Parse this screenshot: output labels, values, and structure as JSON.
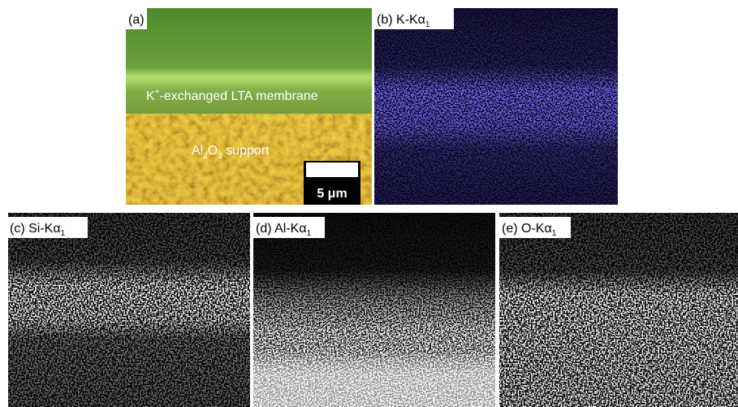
{
  "panel_a": {
    "label": "(a)",
    "membrane_label": {
      "base": "K",
      "sup": "+",
      "rest": "-exchanged LTA membrane"
    },
    "support_label": {
      "part1": "Al",
      "sub1": "2",
      "part2": "O",
      "sub2": "3",
      "rest": " support"
    },
    "scale_bar": "5 μm"
  },
  "maps": [
    {
      "label": "(b) K-Kα",
      "sub": "1"
    },
    {
      "label": "(c) Si-Kα",
      "sub": "1"
    },
    {
      "label": "(d) Al-Kα",
      "sub": "1"
    },
    {
      "label": "(e) O-Kα",
      "sub": "1"
    }
  ]
}
